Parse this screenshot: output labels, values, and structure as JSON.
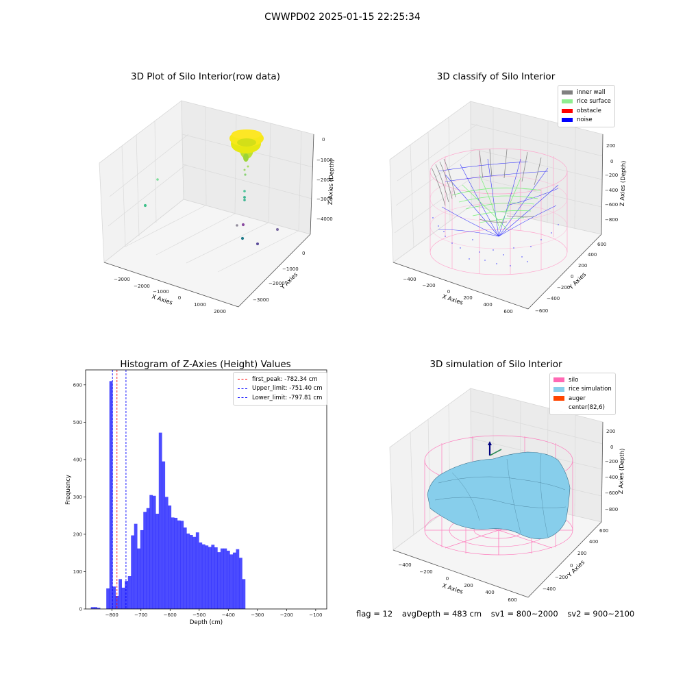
{
  "suptitle": "CWWPD02 2025-01-15 22:25:34",
  "footer": {
    "flag": "flag = 12",
    "avg": "avgDepth = 483 cm",
    "sv1": "sv1 = 800~2000",
    "sv2": "sv2 = 900~2100"
  },
  "plots": {
    "raw": {
      "title": "3D Plot of Silo Interior(row data)",
      "xlabel": "X Axies",
      "ylabel": "Y Axies",
      "zlabel": "Z Axies (Depth)",
      "xticks": [
        "−3000",
        "−2000",
        "−1000",
        "0",
        "1000",
        "2000"
      ],
      "yticks": [
        "0",
        "−1000",
        "−2000",
        "−3000"
      ],
      "zticks": [
        "0",
        "−1000",
        "−2000",
        "−3000",
        "−4000"
      ]
    },
    "classify": {
      "title": "3D classify of Silo Interior",
      "xlabel": "X Axies",
      "ylabel": "Y Axies",
      "zlabel": "Z Axies (Depth)",
      "xticks": [
        "−400",
        "−200",
        "0",
        "200",
        "400",
        "600"
      ],
      "yticks": [
        "600",
        "400",
        "200",
        "0",
        "−200",
        "−400",
        "−600"
      ],
      "zticks": [
        "200",
        "0",
        "−200",
        "−400",
        "−600",
        "−800"
      ],
      "legend": [
        {
          "label": "inner wall",
          "color": "#808080"
        },
        {
          "label": "rice surface",
          "color": "#90ee90"
        },
        {
          "label": "obstacle",
          "color": "#ff0000"
        },
        {
          "label": "noise",
          "color": "#0000ff"
        }
      ]
    },
    "simulation": {
      "title": "3D simulation of Silo Interior",
      "xlabel": "X Axies",
      "ylabel": "Y Axies",
      "zlabel": "Z Axies (Depth)",
      "xticks": [
        "−400",
        "−200",
        "0",
        "200",
        "400",
        "600"
      ],
      "yticks": [
        "600",
        "400",
        "200",
        "0",
        "−200",
        "−400"
      ],
      "zticks": [
        "200",
        "0",
        "−200",
        "−400",
        "−600",
        "−800"
      ],
      "legend": [
        {
          "label": "silo",
          "color": "#ff69b4"
        },
        {
          "label": "rice simulation",
          "color": "#87ceeb"
        },
        {
          "label": "auger",
          "color": "#ff4500"
        },
        {
          "label": "center(82,6)",
          "color": "#ffffff"
        }
      ]
    }
  },
  "chart_data": {
    "type": "bar",
    "title": "Histogram of Z-Axies (Height) Values",
    "xlabel": "Depth (cm)",
    "ylabel": "Frequency",
    "xlim": [
      -890,
      -62
    ],
    "ylim": [
      0,
      640
    ],
    "xticks": [
      -800,
      -700,
      -600,
      -500,
      -400,
      -300,
      -200,
      -100
    ],
    "yticks": [
      0,
      100,
      200,
      300,
      400,
      500,
      600
    ],
    "bin_start": -872,
    "bin_width": 10.6,
    "values": [
      5,
      5,
      3,
      0,
      0,
      55,
      610,
      60,
      35,
      80,
      57,
      75,
      88,
      197,
      228,
      162,
      211,
      260,
      270,
      305,
      303,
      255,
      472,
      395,
      300,
      277,
      245,
      244,
      237,
      236,
      218,
      202,
      198,
      193,
      205,
      178,
      173,
      170,
      166,
      172,
      165,
      152,
      162,
      162,
      156,
      146,
      151,
      160,
      137,
      80
    ],
    "color": "#0000ff",
    "lines": [
      {
        "name": "first_peak: -782.34 cm",
        "x": -782.34,
        "color": "#ff0000"
      },
      {
        "name": "Upper_limit: -751.40 cm",
        "x": -751.4,
        "color": "#0000ff"
      },
      {
        "name": "Lower_limit: -797.81 cm",
        "x": -797.81,
        "color": "#0000ff"
      }
    ]
  }
}
